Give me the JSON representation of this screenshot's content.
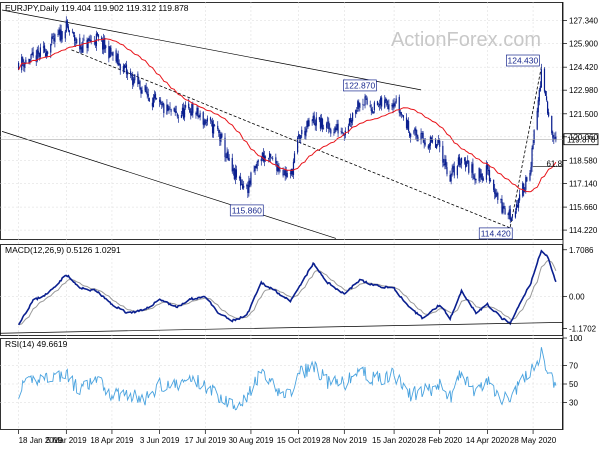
{
  "colors": {
    "candle": "#0a1f8f",
    "ma": "#e8141a",
    "trend": "#000000",
    "grid": "#d9d9d9",
    "macd": "#0a1f8f",
    "signal": "#9a9a9a",
    "rsi": "#4aa3df",
    "watermark": "#c8c8c8",
    "axis_text": "#000000"
  },
  "watermark": "ActionForex.com",
  "chart_data": [
    {
      "type": "candlestick",
      "title": "EURJPY,Daily  119.404 119.902 119.312 119.878",
      "ylim": [
        113.6,
        128.5
      ],
      "y_ticks": [
        "127.340",
        "125.900",
        "124.420",
        "122.980",
        "121.500",
        "120.060",
        "118.580",
        "117.140",
        "115.660",
        "114.220"
      ],
      "last_price": "119.878",
      "grid": true,
      "indicators": [
        "moving average",
        "descending channel",
        "trendline",
        "fibonacci level"
      ],
      "annotations": [
        {
          "label": "115.860",
          "date": "2019-08-26",
          "price": 115.86
        },
        {
          "label": "122.870",
          "date": "2019-12-13",
          "price": 122.87
        },
        {
          "label": "114.420",
          "date": "2020-05-06",
          "price": 114.42
        },
        {
          "label": "124.430",
          "date": "2020-06-05",
          "price": 124.43
        },
        {
          "label": "61.8",
          "date": "2020-06-08",
          "price": 118.4
        }
      ],
      "price_path": [
        [
          "2019-01-18",
          124.7
        ],
        [
          "2019-02-01",
          124.9
        ],
        [
          "2019-02-15",
          125.6
        ],
        [
          "2019-03-05",
          126.9
        ],
        [
          "2019-03-18",
          125.7
        ],
        [
          "2019-04-03",
          126.2
        ],
        [
          "2019-04-18",
          125.2
        ],
        [
          "2019-05-03",
          124.0
        ],
        [
          "2019-05-20",
          122.9
        ],
        [
          "2019-06-03",
          121.9
        ],
        [
          "2019-06-20",
          121.4
        ],
        [
          "2019-07-03",
          121.8
        ],
        [
          "2019-07-17",
          121.0
        ],
        [
          "2019-07-29",
          120.4
        ],
        [
          "2019-08-12",
          117.8
        ],
        [
          "2019-08-26",
          116.8
        ],
        [
          "2019-09-09",
          118.9
        ],
        [
          "2019-09-23",
          118.4
        ],
        [
          "2019-10-07",
          117.5
        ],
        [
          "2019-10-15",
          120.0
        ],
        [
          "2019-10-29",
          121.1
        ],
        [
          "2019-11-12",
          120.6
        ],
        [
          "2019-11-28",
          120.5
        ],
        [
          "2019-12-13",
          122.4
        ],
        [
          "2019-12-27",
          121.9
        ],
        [
          "2020-01-15",
          122.4
        ],
        [
          "2020-01-29",
          120.6
        ],
        [
          "2020-02-12",
          119.8
        ],
        [
          "2020-02-28",
          119.4
        ],
        [
          "2020-03-09",
          117.5
        ],
        [
          "2020-03-20",
          118.8
        ],
        [
          "2020-04-03",
          117.6
        ],
        [
          "2020-04-14",
          117.9
        ],
        [
          "2020-04-28",
          115.6
        ],
        [
          "2020-05-06",
          115.1
        ],
        [
          "2020-05-15",
          116.1
        ],
        [
          "2020-05-26",
          118.4
        ],
        [
          "2020-06-05",
          124.0
        ],
        [
          "2020-06-12",
          121.2
        ],
        [
          "2020-06-19",
          119.9
        ]
      ]
    },
    {
      "type": "line",
      "title": "MACD(12,26,9) 0.5126 1.0291",
      "ylim": [
        -1.45,
        1.92
      ],
      "y_ticks": [
        "1.7086",
        "0.00",
        "-1.1702"
      ],
      "series_path": [
        [
          "2019-01-18",
          -1.0
        ],
        [
          "2019-02-01",
          -0.15
        ],
        [
          "2019-02-15",
          0.1
        ],
        [
          "2019-03-05",
          0.8
        ],
        [
          "2019-03-18",
          0.3
        ],
        [
          "2019-04-03",
          0.2
        ],
        [
          "2019-04-18",
          -0.3
        ],
        [
          "2019-05-03",
          -0.6
        ],
        [
          "2019-05-20",
          -0.5
        ],
        [
          "2019-06-03",
          -0.1
        ],
        [
          "2019-06-20",
          -0.4
        ],
        [
          "2019-07-03",
          -0.1
        ],
        [
          "2019-07-17",
          0.0
        ],
        [
          "2019-07-29",
          -0.6
        ],
        [
          "2019-08-12",
          -0.9
        ],
        [
          "2019-08-26",
          -0.7
        ],
        [
          "2019-09-09",
          0.5
        ],
        [
          "2019-09-23",
          0.2
        ],
        [
          "2019-10-07",
          -0.2
        ],
        [
          "2019-10-15",
          0.3
        ],
        [
          "2019-10-29",
          1.2
        ],
        [
          "2019-11-12",
          0.5
        ],
        [
          "2019-11-28",
          0.1
        ],
        [
          "2019-12-13",
          0.6
        ],
        [
          "2019-12-27",
          0.4
        ],
        [
          "2020-01-15",
          0.3
        ],
        [
          "2020-01-29",
          -0.4
        ],
        [
          "2020-02-12",
          -0.8
        ],
        [
          "2020-02-28",
          -0.3
        ],
        [
          "2020-03-09",
          -0.8
        ],
        [
          "2020-03-20",
          0.2
        ],
        [
          "2020-04-03",
          -0.6
        ],
        [
          "2020-04-14",
          -0.3
        ],
        [
          "2020-04-28",
          -0.8
        ],
        [
          "2020-05-06",
          -1.0
        ],
        [
          "2020-05-15",
          -0.3
        ],
        [
          "2020-05-26",
          0.5
        ],
        [
          "2020-06-05",
          1.7
        ],
        [
          "2020-06-12",
          1.4
        ],
        [
          "2020-06-19",
          0.5
        ]
      ]
    },
    {
      "type": "line",
      "title": "RSI(14) 49.6619",
      "ylim": [
        0,
        100
      ],
      "y_ticks": [
        "100",
        "70",
        "50",
        "30"
      ],
      "series_path": [
        [
          "2019-01-18",
          42
        ],
        [
          "2019-02-01",
          55
        ],
        [
          "2019-02-15",
          58
        ],
        [
          "2019-03-05",
          60
        ],
        [
          "2019-03-18",
          42
        ],
        [
          "2019-04-03",
          55
        ],
        [
          "2019-04-18",
          38
        ],
        [
          "2019-05-03",
          40
        ],
        [
          "2019-05-20",
          32
        ],
        [
          "2019-06-03",
          50
        ],
        [
          "2019-06-20",
          48
        ],
        [
          "2019-07-03",
          56
        ],
        [
          "2019-07-17",
          48
        ],
        [
          "2019-07-29",
          38
        ],
        [
          "2019-08-12",
          28
        ],
        [
          "2019-08-26",
          35
        ],
        [
          "2019-09-09",
          62
        ],
        [
          "2019-09-23",
          44
        ],
        [
          "2019-10-07",
          38
        ],
        [
          "2019-10-15",
          60
        ],
        [
          "2019-10-29",
          70
        ],
        [
          "2019-11-12",
          52
        ],
        [
          "2019-11-28",
          50
        ],
        [
          "2019-12-13",
          65
        ],
        [
          "2019-12-27",
          55
        ],
        [
          "2020-01-15",
          60
        ],
        [
          "2020-01-29",
          38
        ],
        [
          "2020-02-12",
          42
        ],
        [
          "2020-02-28",
          48
        ],
        [
          "2020-03-09",
          35
        ],
        [
          "2020-03-20",
          62
        ],
        [
          "2020-04-03",
          40
        ],
        [
          "2020-04-14",
          52
        ],
        [
          "2020-04-28",
          34
        ],
        [
          "2020-05-06",
          36
        ],
        [
          "2020-05-15",
          50
        ],
        [
          "2020-05-26",
          65
        ],
        [
          "2020-06-05",
          82
        ],
        [
          "2020-06-12",
          60
        ],
        [
          "2020-06-19",
          49
        ]
      ]
    }
  ],
  "x_ticks": [
    "18 Jan 2019",
    "5 Mar 2019",
    "18 Apr 2019",
    "3 Jun 2019",
    "17 Jul 2019",
    "30 Aug 2019",
    "15 Oct 2019",
    "28 Nov 2019",
    "15 Jan 2020",
    "28 Feb 2020",
    "14 Apr 2020",
    "28 May 2020"
  ],
  "x_tick_dates": [
    "2019-01-18",
    "2019-03-05",
    "2019-04-18",
    "2019-06-03",
    "2019-07-17",
    "2019-08-30",
    "2019-10-15",
    "2019-11-28",
    "2020-01-15",
    "2020-02-28",
    "2020-04-14",
    "2020-05-28"
  ]
}
